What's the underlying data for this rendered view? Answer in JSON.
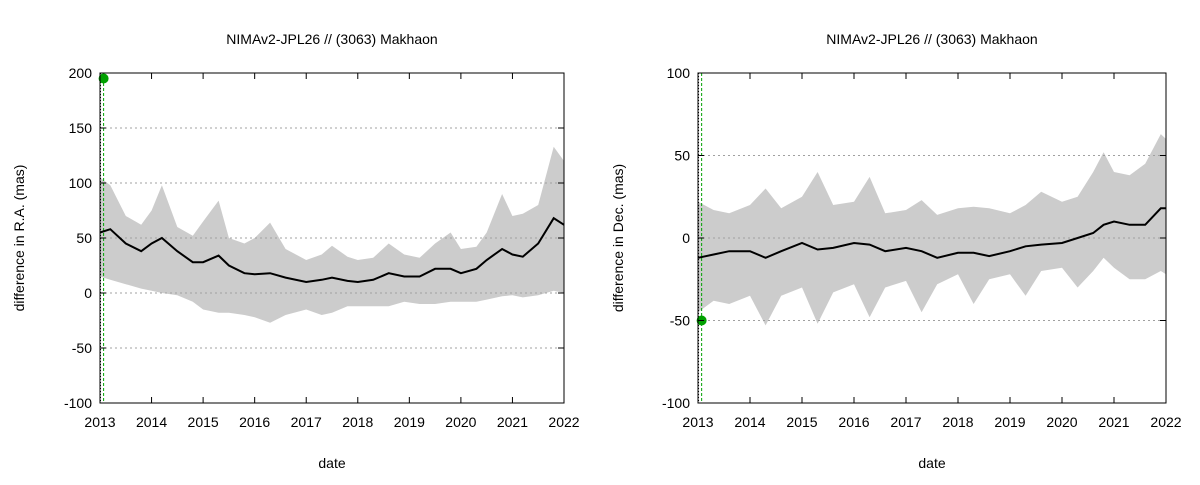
{
  "chart_data": [
    {
      "type": "line",
      "title": "NIMAv2-JPL26 // (3063) Makhaon",
      "xlabel": "date",
      "ylabel": "difference in R.A. (mas)",
      "xlim": [
        2013,
        2022
      ],
      "ylim": [
        -100,
        200
      ],
      "x_ticks": [
        "2013",
        "2014",
        "2015",
        "2016",
        "2017",
        "2018",
        "2019",
        "2020",
        "2021",
        "2022"
      ],
      "y_ticks": [
        "-100",
        "-50",
        "0",
        "50",
        "100",
        "150",
        "200"
      ],
      "grid": "horizontal-dotted",
      "series": [
        {
          "name": "difference",
          "color": "#000000",
          "x": [
            2013.0,
            2013.2,
            2013.5,
            2013.8,
            2014.0,
            2014.2,
            2014.5,
            2014.8,
            2015.0,
            2015.3,
            2015.5,
            2015.8,
            2016.0,
            2016.3,
            2016.6,
            2017.0,
            2017.3,
            2017.5,
            2017.8,
            2018.0,
            2018.3,
            2018.6,
            2018.9,
            2019.2,
            2019.5,
            2019.8,
            2020.0,
            2020.3,
            2020.5,
            2020.8,
            2021.0,
            2021.2,
            2021.5,
            2021.8,
            2022.0
          ],
          "y": [
            55,
            58,
            45,
            38,
            45,
            50,
            38,
            28,
            28,
            34,
            25,
            18,
            17,
            18,
            14,
            10,
            12,
            14,
            11,
            10,
            12,
            18,
            15,
            15,
            22,
            22,
            18,
            22,
            30,
            40,
            35,
            33,
            45,
            68,
            62
          ]
        },
        {
          "name": "uncertainty band",
          "color": "#cccccc",
          "x": [
            2013.0,
            2013.2,
            2013.5,
            2013.8,
            2014.0,
            2014.2,
            2014.5,
            2014.8,
            2015.0,
            2015.3,
            2015.5,
            2015.8,
            2016.0,
            2016.3,
            2016.6,
            2017.0,
            2017.3,
            2017.5,
            2017.8,
            2018.0,
            2018.3,
            2018.6,
            2018.9,
            2019.2,
            2019.5,
            2019.8,
            2020.0,
            2020.3,
            2020.5,
            2020.8,
            2021.0,
            2021.2,
            2021.5,
            2021.8,
            2022.0
          ],
          "upper": [
            105,
            98,
            70,
            62,
            75,
            98,
            60,
            52,
            65,
            84,
            50,
            45,
            50,
            64,
            40,
            30,
            35,
            43,
            33,
            30,
            32,
            45,
            35,
            32,
            45,
            55,
            40,
            42,
            55,
            90,
            70,
            72,
            80,
            133,
            120
          ],
          "lower": [
            15,
            12,
            8,
            4,
            2,
            0,
            -2,
            -8,
            -15,
            -18,
            -18,
            -20,
            -22,
            -27,
            -20,
            -15,
            -20,
            -18,
            -12,
            -12,
            -12,
            -12,
            -8,
            -10,
            -10,
            -8,
            -8,
            -8,
            -6,
            -3,
            -2,
            -4,
            -2,
            2,
            0
          ]
        }
      ],
      "annotations": [
        {
          "type": "vertical-dashed-line",
          "x": 2013.07,
          "color": "#00a000"
        },
        {
          "type": "point",
          "x": 2013.07,
          "y": 195,
          "color": "#00a000"
        }
      ]
    },
    {
      "type": "line",
      "title": "NIMAv2-JPL26 // (3063) Makhaon",
      "xlabel": "date",
      "ylabel": "difference in Dec. (mas)",
      "xlim": [
        2013,
        2022
      ],
      "ylim": [
        -100,
        100
      ],
      "x_ticks": [
        "2013",
        "2014",
        "2015",
        "2016",
        "2017",
        "2018",
        "2019",
        "2020",
        "2021",
        "2022"
      ],
      "y_ticks": [
        "-100",
        "-50",
        "0",
        "50",
        "100"
      ],
      "grid": "horizontal-dotted",
      "series": [
        {
          "name": "difference",
          "color": "#000000",
          "x": [
            2013.0,
            2013.3,
            2013.6,
            2014.0,
            2014.3,
            2014.6,
            2015.0,
            2015.3,
            2015.6,
            2016.0,
            2016.3,
            2016.6,
            2017.0,
            2017.3,
            2017.6,
            2018.0,
            2018.3,
            2018.6,
            2019.0,
            2019.3,
            2019.6,
            2020.0,
            2020.3,
            2020.6,
            2020.8,
            2021.0,
            2021.3,
            2021.6,
            2021.9,
            2022.0
          ],
          "y": [
            -12,
            -10,
            -8,
            -8,
            -12,
            -8,
            -3,
            -7,
            -6,
            -3,
            -4,
            -8,
            -6,
            -8,
            -12,
            -9,
            -9,
            -11,
            -8,
            -5,
            -4,
            -3,
            0,
            3,
            8,
            10,
            8,
            8,
            18,
            18
          ]
        },
        {
          "name": "uncertainty band",
          "color": "#cccccc",
          "x": [
            2013.0,
            2013.3,
            2013.6,
            2014.0,
            2014.3,
            2014.6,
            2015.0,
            2015.3,
            2015.6,
            2016.0,
            2016.3,
            2016.6,
            2017.0,
            2017.3,
            2017.6,
            2018.0,
            2018.3,
            2018.6,
            2019.0,
            2019.3,
            2019.6,
            2020.0,
            2020.3,
            2020.6,
            2020.8,
            2021.0,
            2021.3,
            2021.6,
            2021.9,
            2022.0
          ],
          "upper": [
            22,
            17,
            15,
            20,
            30,
            18,
            25,
            40,
            20,
            22,
            37,
            15,
            17,
            23,
            14,
            18,
            19,
            18,
            15,
            20,
            28,
            22,
            25,
            40,
            52,
            40,
            38,
            45,
            63,
            60
          ],
          "lower": [
            -45,
            -38,
            -40,
            -35,
            -53,
            -35,
            -30,
            -52,
            -33,
            -28,
            -48,
            -30,
            -26,
            -45,
            -28,
            -22,
            -40,
            -25,
            -22,
            -35,
            -20,
            -18,
            -30,
            -20,
            -12,
            -18,
            -25,
            -25,
            -20,
            -22
          ]
        }
      ],
      "annotations": [
        {
          "type": "vertical-dashed-line",
          "x": 2013.07,
          "color": "#00a000"
        },
        {
          "type": "point",
          "x": 2013.07,
          "y": -50,
          "color": "#00a000"
        }
      ]
    }
  ]
}
